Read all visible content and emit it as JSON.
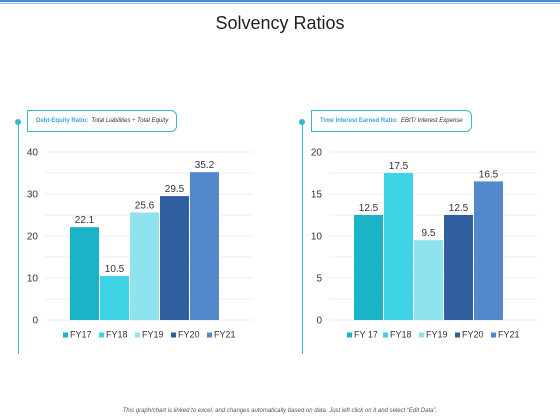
{
  "page": {
    "title": "Solvency Ratios"
  },
  "footer": {
    "note": "This graph/chart is linked to excel, and changes automatically based on data. Just left click on it and select “Edit Data”."
  },
  "colors": {
    "accent": "#35b9cc",
    "FY17": "#1bb3c7",
    "FY18": "#3ed4e6",
    "FY19": "#8fe3ef",
    "FY20": "#2f5f9e",
    "FY21": "#5388cc"
  },
  "chart_data": [
    {
      "type": "bar",
      "label_key": "Debt-Equity Ratio:",
      "label_value": "Total Liabilities ÷ Total Equity",
      "categories": [
        "FY17",
        "FY18",
        "FY19",
        "FY20",
        "FY21"
      ],
      "legend": [
        "FY17",
        "FY18",
        "FY19",
        "FY20",
        "FY21"
      ],
      "values": [
        22.1,
        10.5,
        25.6,
        29.5,
        35.2
      ],
      "data_labels": [
        "22.1",
        "10.5",
        "25.6",
        "29.5",
        "35.2"
      ],
      "yticks": [
        0,
        10,
        20,
        30,
        40
      ],
      "ylim": [
        0,
        40
      ],
      "grid": true,
      "legend_position": "bottom"
    },
    {
      "type": "bar",
      "label_key": "Time Interest Earned Ratio:",
      "label_value": "EBIT/ Interest Expense",
      "categories": [
        "FY 17",
        "FY18",
        "FY19",
        "FY20",
        "FY21"
      ],
      "legend": [
        "FY 17",
        "FY18",
        "FY19",
        "FY20",
        "FY21"
      ],
      "values": [
        12.5,
        17.5,
        9.5,
        12.5,
        16.5
      ],
      "data_labels": [
        "12.5",
        "17.5",
        "9.5",
        "12.5",
        "16.5"
      ],
      "yticks": [
        0,
        5,
        10,
        15,
        20
      ],
      "ylim": [
        0,
        20
      ],
      "grid": true,
      "legend_position": "bottom"
    }
  ]
}
